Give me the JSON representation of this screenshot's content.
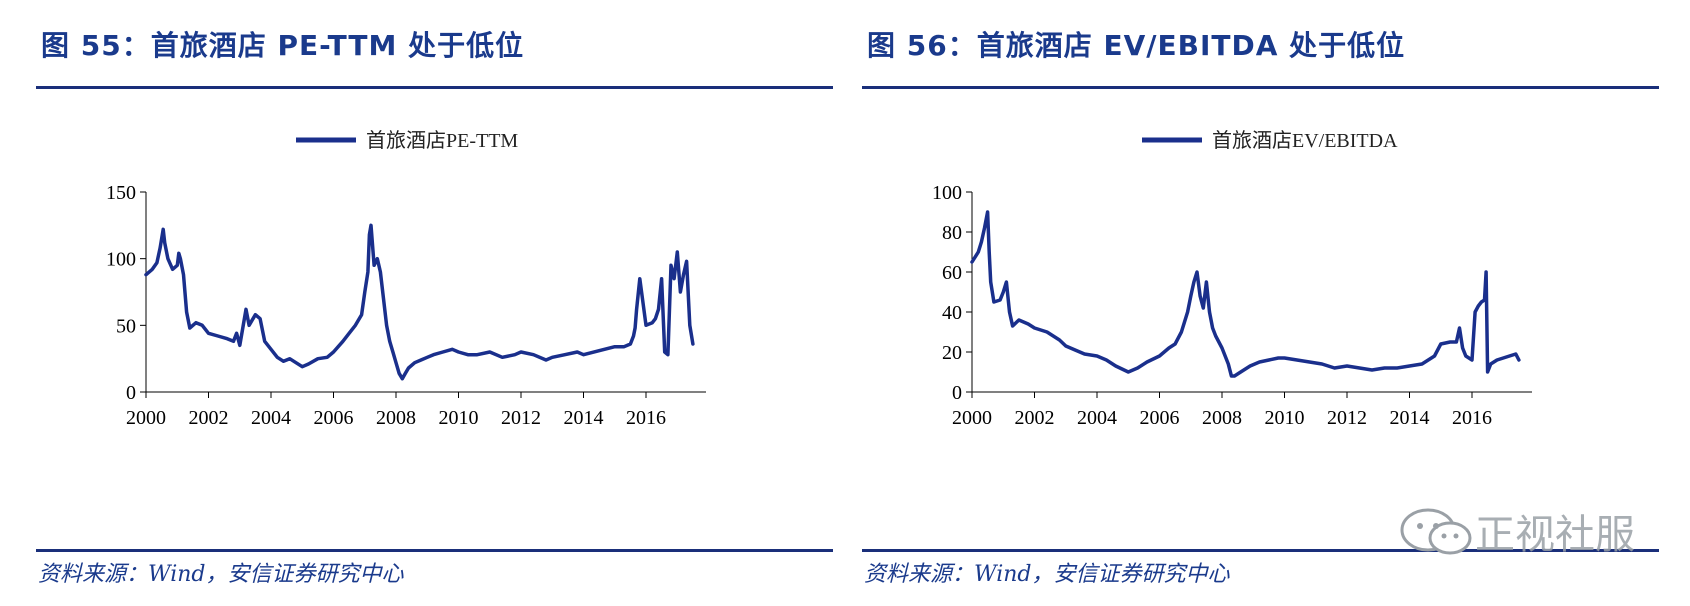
{
  "figures": [
    {
      "title": "图 55：首旅酒店 PE-TTM 处于低位",
      "source": "资料来源：Wind，安信证券研究中心"
    },
    {
      "title": "图 56：首旅酒店 EV/EBITDA 处于低位",
      "source": "资料来源：Wind，安信证券研究中心"
    }
  ],
  "watermark": {
    "text": "正视社服",
    "icon": "wechat-bubble-icon"
  },
  "chart_data": [
    {
      "type": "line",
      "legend": "首旅酒店PE-TTM",
      "xlim": [
        2000,
        2017.6
      ],
      "ylim": [
        0,
        150
      ],
      "xticks": [
        "2000",
        "2002",
        "2004",
        "2006",
        "2008",
        "2010",
        "2012",
        "2014",
        "2016"
      ],
      "yticks": [
        "0",
        "50",
        "100",
        "150"
      ],
      "color": "#1a2f8c",
      "series": [
        {
          "x": [
            2000.0,
            2000.2,
            2000.35,
            2000.45,
            2000.55,
            2000.6,
            2000.7,
            2000.85,
            2001.0,
            2001.05,
            2001.1,
            2001.2,
            2001.3,
            2001.4,
            2001.6,
            2001.8,
            2002.0,
            2002.3,
            2002.6,
            2002.8,
            2002.9,
            2003.0,
            2003.2,
            2003.3,
            2003.5,
            2003.65,
            2003.8,
            2004.0,
            2004.2,
            2004.4,
            2004.6,
            2004.8,
            2005.0,
            2005.2,
            2005.5,
            2005.8,
            2006.0,
            2006.3,
            2006.5,
            2006.7,
            2006.9,
            2007.0,
            2007.1,
            2007.15,
            2007.2,
            2007.3,
            2007.4,
            2007.5,
            2007.6,
            2007.7,
            2007.8,
            2007.9,
            2008.0,
            2008.1,
            2008.2,
            2008.3,
            2008.4,
            2008.6,
            2008.8,
            2009.0,
            2009.2,
            2009.5,
            2009.8,
            2010.0,
            2010.3,
            2010.6,
            2011.0,
            2011.4,
            2011.8,
            2012.0,
            2012.4,
            2012.8,
            2013.0,
            2013.4,
            2013.8,
            2014.0,
            2014.5,
            2015.0,
            2015.3,
            2015.5,
            2015.6,
            2015.65,
            2015.7,
            2015.8,
            2016.0,
            2016.2,
            2016.3,
            2016.4,
            2016.5,
            2016.6,
            2016.7,
            2016.8,
            2016.9,
            2017.0,
            2017.1,
            2017.2,
            2017.3,
            2017.4,
            2017.5
          ],
          "y": [
            88,
            92,
            97,
            108,
            122,
            112,
            100,
            92,
            95,
            104,
            100,
            88,
            60,
            48,
            52,
            50,
            44,
            42,
            40,
            38,
            44,
            35,
            62,
            50,
            58,
            55,
            38,
            32,
            26,
            23,
            25,
            22,
            19,
            21,
            25,
            26,
            30,
            38,
            44,
            50,
            58,
            75,
            90,
            118,
            125,
            95,
            100,
            90,
            70,
            50,
            38,
            30,
            22,
            14,
            10,
            14,
            18,
            22,
            24,
            26,
            28,
            30,
            32,
            30,
            28,
            28,
            30,
            26,
            28,
            30,
            28,
            24,
            26,
            28,
            30,
            28,
            31,
            34,
            34,
            36,
            42,
            48,
            62,
            85,
            50,
            52,
            55,
            62,
            85,
            30,
            28,
            95,
            85,
            105,
            75,
            88,
            98,
            50,
            36
          ]
        }
      ]
    },
    {
      "type": "line",
      "legend": "首旅酒店EV/EBITDA",
      "xlim": [
        2000,
        2017.6
      ],
      "ylim": [
        0,
        100
      ],
      "xticks": [
        "2000",
        "2002",
        "2004",
        "2006",
        "2008",
        "2010",
        "2012",
        "2014",
        "2016"
      ],
      "yticks": [
        "0",
        "20",
        "40",
        "60",
        "80",
        "100"
      ],
      "color": "#1a2f8c",
      "series": [
        {
          "x": [
            2000.0,
            2000.2,
            2000.3,
            2000.4,
            2000.5,
            2000.55,
            2000.6,
            2000.7,
            2000.9,
            2001.0,
            2001.1,
            2001.2,
            2001.3,
            2001.5,
            2001.8,
            2002.0,
            2002.4,
            2002.8,
            2003.0,
            2003.3,
            2003.6,
            2004.0,
            2004.3,
            2004.6,
            2005.0,
            2005.3,
            2005.6,
            2006.0,
            2006.3,
            2006.5,
            2006.7,
            2006.9,
            2007.0,
            2007.1,
            2007.2,
            2007.3,
            2007.4,
            2007.5,
            2007.6,
            2007.7,
            2007.8,
            2008.0,
            2008.2,
            2008.3,
            2008.4,
            2008.6,
            2008.9,
            2009.2,
            2009.5,
            2009.8,
            2010.0,
            2010.4,
            2010.8,
            2011.2,
            2011.6,
            2012.0,
            2012.4,
            2012.8,
            2013.2,
            2013.6,
            2014.0,
            2014.4,
            2014.8,
            2015.0,
            2015.3,
            2015.5,
            2015.6,
            2015.7,
            2015.8,
            2016.0,
            2016.1,
            2016.2,
            2016.3,
            2016.4,
            2016.45,
            2016.5,
            2016.6,
            2016.8,
            2017.0,
            2017.2,
            2017.4,
            2017.5
          ],
          "y": [
            65,
            70,
            75,
            82,
            90,
            70,
            55,
            45,
            46,
            50,
            55,
            40,
            33,
            36,
            34,
            32,
            30,
            26,
            23,
            21,
            19,
            18,
            16,
            13,
            10,
            12,
            15,
            18,
            22,
            24,
            30,
            40,
            48,
            55,
            60,
            48,
            42,
            55,
            40,
            32,
            28,
            22,
            14,
            8,
            8,
            10,
            13,
            15,
            16,
            17,
            17,
            16,
            15,
            14,
            12,
            13,
            12,
            11,
            12,
            12,
            13,
            14,
            18,
            24,
            25,
            25,
            32,
            22,
            18,
            16,
            40,
            43,
            45,
            46,
            60,
            10,
            14,
            16,
            17,
            18,
            19,
            16
          ]
        }
      ]
    }
  ]
}
